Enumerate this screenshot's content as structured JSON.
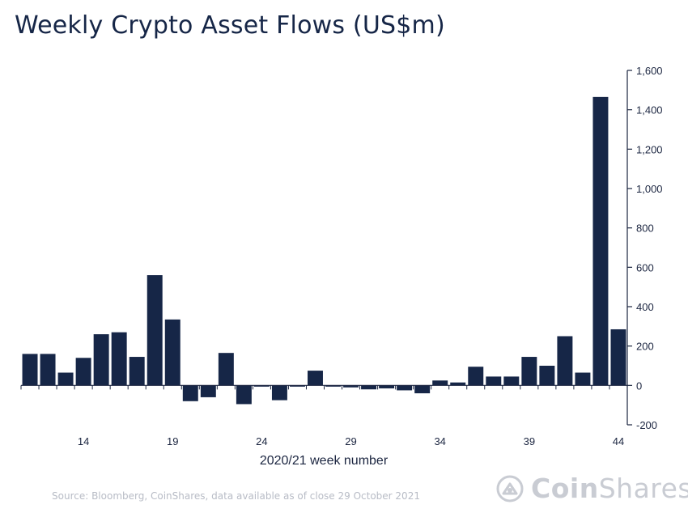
{
  "title": "Weekly Crypto Asset Flows (US$m)",
  "source": "Source: Bloomberg, CoinShares, data available as of close 29 October 2021",
  "brand": {
    "bold": "Coin",
    "regular": "Shares",
    "logo_icon": "coinshares-shield-icon"
  },
  "colors": {
    "bar": "#162647",
    "axis": "#1b2540",
    "title": "#162647",
    "muted": "#c9ccd3"
  },
  "chart_data": {
    "type": "bar",
    "title": "Weekly Crypto Asset Flows (US$m)",
    "xlabel": "2020/21 week number",
    "ylabel": "",
    "ylim": [
      -200,
      1600
    ],
    "yticks": [
      -200,
      0,
      200,
      400,
      600,
      800,
      1000,
      1200,
      1400,
      1600
    ],
    "ytick_labels": [
      "-200",
      "0",
      "200",
      "400",
      "600",
      "800",
      "1,000",
      "1,200",
      "1,400",
      "1,600"
    ],
    "y_axis_side": "right",
    "categories": [
      11,
      12,
      13,
      14,
      15,
      16,
      17,
      18,
      19,
      20,
      21,
      22,
      23,
      24,
      25,
      26,
      27,
      28,
      29,
      30,
      31,
      32,
      33,
      34,
      35,
      36,
      37,
      38,
      39,
      40,
      41,
      42,
      43,
      44
    ],
    "xtick_labels": [
      "14",
      "19",
      "24",
      "29",
      "34",
      "39",
      "44"
    ],
    "values": [
      160,
      160,
      65,
      140,
      260,
      270,
      145,
      560,
      335,
      -80,
      -60,
      165,
      -95,
      -5,
      -75,
      0,
      75,
      -5,
      -10,
      -20,
      -15,
      -25,
      -40,
      25,
      15,
      95,
      45,
      45,
      145,
      100,
      250,
      65,
      1465,
      285
    ]
  }
}
